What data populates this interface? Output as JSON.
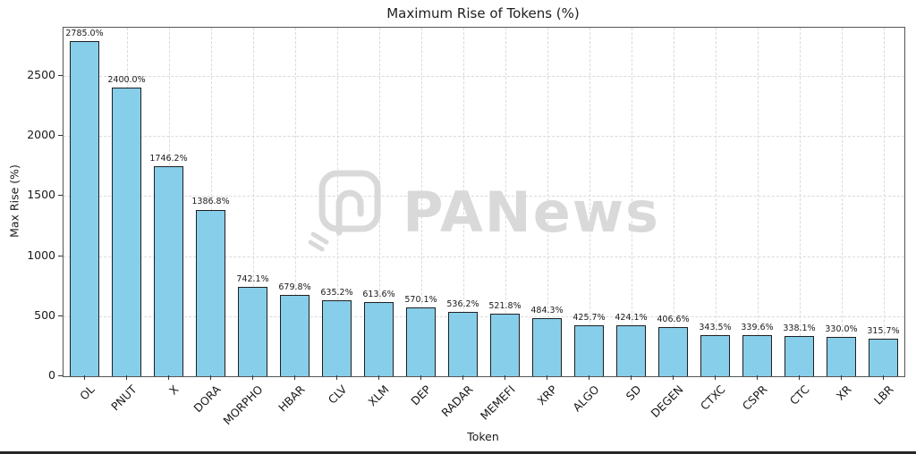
{
  "watermark": {
    "text": "PANews"
  },
  "chart_data": {
    "type": "bar",
    "title": "Maximum Rise of Tokens (%)",
    "xlabel": "Token",
    "ylabel": "Max Rise (%)",
    "categories": [
      "OL",
      "PNUT",
      "X",
      "DORA",
      "MORPHO",
      "HBAR",
      "CLV",
      "XLM",
      "DEP",
      "RADAR",
      "MEMEFI",
      "XRP",
      "ALGO",
      "SD",
      "DEGEN",
      "CTXC",
      "CSPR",
      "CTC",
      "XR",
      "LBR"
    ],
    "values": [
      2785.0,
      2400.0,
      1746.2,
      1386.8,
      742.1,
      679.8,
      635.2,
      613.6,
      570.1,
      536.2,
      521.8,
      484.3,
      425.7,
      424.1,
      406.6,
      343.5,
      339.6,
      338.1,
      330.0,
      315.7
    ],
    "value_labels": [
      "2785.0%",
      "2400.0%",
      "1746.2%",
      "1386.8%",
      "742.1%",
      "679.8%",
      "635.2%",
      "613.6%",
      "570.1%",
      "536.2%",
      "521.8%",
      "484.3%",
      "425.7%",
      "424.1%",
      "406.6%",
      "343.5%",
      "339.6%",
      "338.1%",
      "330.0%",
      "315.7%"
    ],
    "ylim": [
      0,
      2900
    ],
    "yticks": [
      0,
      500,
      1000,
      1500,
      2000,
      2500
    ],
    "grid": true,
    "grid_style": "dashed",
    "legend": "none",
    "bar_color": "#87CEEB",
    "bar_edge_color": "#1f1f1f"
  }
}
